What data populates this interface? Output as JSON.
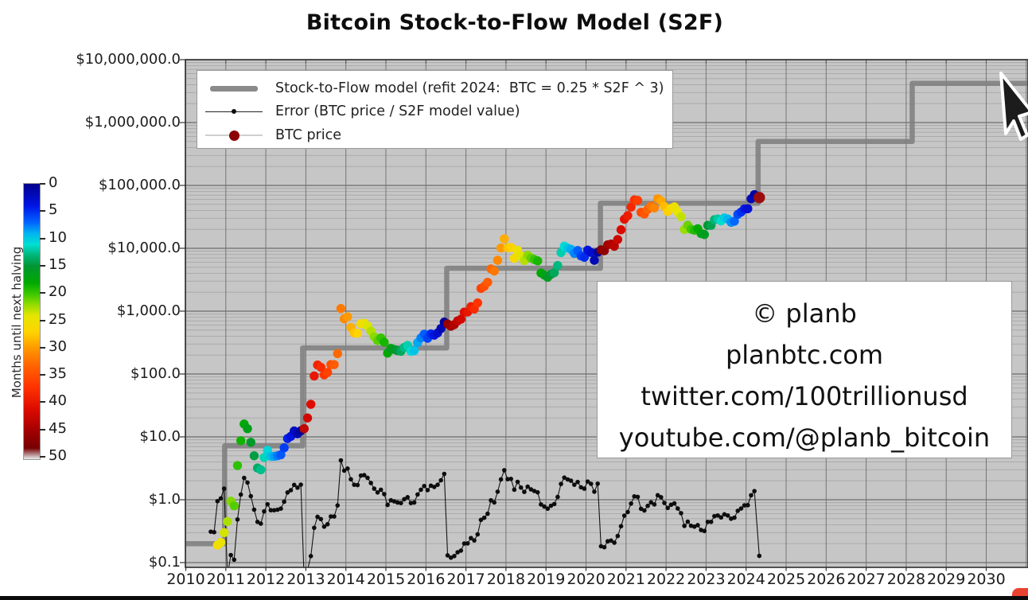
{
  "title": "Bitcoin Stock-to-Flow Model (S2F)",
  "legend": {
    "items": [
      {
        "label": "Stock-to-Flow model (refit 2024:  BTC = 0.25 * S2F ^ 3)",
        "marker": "thick-gray-line",
        "color": "#8a8a8a"
      },
      {
        "label": "Error (BTC price / S2F model value)",
        "marker": "thin-line-black-dot",
        "color": "#111111"
      },
      {
        "label": "BTC price",
        "marker": "dark-red-dot",
        "color": "#8b0000"
      }
    ]
  },
  "watermark": {
    "lines": [
      "© planb",
      "planbtc.com",
      "twitter.com/100trillionusd",
      "youtube.com/@planb_bitcoin"
    ]
  },
  "colorbar": {
    "label": "Months until next halving",
    "min": 0,
    "max": 50,
    "ticks": [
      0,
      5,
      10,
      15,
      20,
      25,
      30,
      35,
      40,
      45,
      50
    ],
    "stops": [
      [
        0,
        "#00008b"
      ],
      [
        4,
        "#0014e6"
      ],
      [
        7,
        "#0064ff"
      ],
      [
        9,
        "#00b4f0"
      ],
      [
        11,
        "#00e0d2"
      ],
      [
        13,
        "#00b478"
      ],
      [
        15,
        "#009632"
      ],
      [
        18,
        "#00aa00"
      ],
      [
        20,
        "#3cc800"
      ],
      [
        22,
        "#96dc00"
      ],
      [
        24,
        "#e6e600"
      ],
      [
        27,
        "#ffd200"
      ],
      [
        30,
        "#ff9600"
      ],
      [
        33,
        "#ff6400"
      ],
      [
        37,
        "#ff3200"
      ],
      [
        41,
        "#dc0a00"
      ],
      [
        45,
        "#a00000"
      ],
      [
        48,
        "#780000"
      ],
      [
        49.5,
        "#c8b4b4"
      ],
      [
        50,
        "#ebebeb"
      ]
    ]
  },
  "axes": {
    "y_tick_labels": [
      "$10,000,000.0",
      "$1,000,000.0",
      "$100,000.0",
      "$10,000.0",
      "$1,000.0",
      "$100.0",
      "$10.0",
      "$1.0",
      "$0.1"
    ],
    "y_tick_values": [
      10000000,
      1000000,
      100000,
      10000,
      1000,
      100,
      10,
      1,
      0.1
    ],
    "x_ticks": [
      2010,
      2011,
      2012,
      2013,
      2014,
      2015,
      2016,
      2017,
      2018,
      2019,
      2020,
      2021,
      2022,
      2023,
      2024,
      2025,
      2026,
      2027,
      2028,
      2029,
      2030
    ],
    "y_scale": "log"
  },
  "chart_data": {
    "type": "line",
    "title": "Bitcoin Stock-to-Flow Model (S2F)",
    "xlabel": "",
    "ylabel": "",
    "x_range": [
      2010,
      2031.05
    ],
    "y_range": [
      0.084,
      10000000
    ],
    "grid": true,
    "legend_position": "upper-left",
    "plot_bg": "#c6c6c6",
    "halvings": [
      2012.92,
      2016.52,
      2020.36,
      2024.3,
      2028.15
    ],
    "color_encoding": "months until next halving",
    "error_definition": "BTC price / S2F model value",
    "series": [
      {
        "name": "Stock-to-Flow model (refit 2024: BTC = 0.25 * S2F ^ 3)",
        "type": "step-line",
        "color": "#7f7f7f",
        "steps": [
          [
            2010,
            0.2
          ],
          [
            2010.97,
            7.2
          ],
          [
            2012.92,
            260
          ],
          [
            2016.52,
            4800
          ],
          [
            2020.36,
            52000
          ],
          [
            2024.3,
            500000
          ],
          [
            2028.15,
            4200000
          ]
        ],
        "x_end": 2031.1
      },
      {
        "name": "BTC price",
        "type": "scatter",
        "color_by": "months-until-next-halving",
        "last_point_color": "#9b0d0d",
        "points": [
          [
            2010.625,
            0.062
          ],
          [
            2010.708,
            0.061
          ],
          [
            2010.792,
            0.19
          ],
          [
            2010.875,
            0.21
          ],
          [
            2010.958,
            0.3
          ],
          [
            2011.042,
            0.45
          ],
          [
            2011.125,
            0.95
          ],
          [
            2011.208,
            0.8
          ],
          [
            2011.292,
            3.5
          ],
          [
            2011.375,
            8.7
          ],
          [
            2011.458,
            16
          ],
          [
            2011.542,
            13.5
          ],
          [
            2011.625,
            8.2
          ],
          [
            2011.708,
            5.0
          ],
          [
            2011.792,
            3.2
          ],
          [
            2011.875,
            3.0
          ],
          [
            2011.958,
            4.7
          ],
          [
            2012.042,
            6.1
          ],
          [
            2012.125,
            4.9
          ],
          [
            2012.208,
            4.9
          ],
          [
            2012.292,
            5.0
          ],
          [
            2012.375,
            5.2
          ],
          [
            2012.458,
            6.7
          ],
          [
            2012.542,
            9.4
          ],
          [
            2012.625,
            10.2
          ],
          [
            2012.708,
            12.4
          ],
          [
            2012.792,
            11.2
          ],
          [
            2012.875,
            12.5
          ],
          [
            2012.958,
            13.5
          ],
          [
            2013.042,
            20
          ],
          [
            2013.125,
            33
          ],
          [
            2013.208,
            93
          ],
          [
            2013.292,
            139
          ],
          [
            2013.375,
            128
          ],
          [
            2013.458,
            97
          ],
          [
            2013.542,
            106
          ],
          [
            2013.625,
            141
          ],
          [
            2013.708,
            141
          ],
          [
            2013.792,
            211
          ],
          [
            2013.875,
            1100
          ],
          [
            2013.958,
            755
          ],
          [
            2014.042,
            815
          ],
          [
            2014.125,
            550
          ],
          [
            2014.208,
            450
          ],
          [
            2014.292,
            445
          ],
          [
            2014.375,
            630
          ],
          [
            2014.458,
            640
          ],
          [
            2014.542,
            580
          ],
          [
            2014.625,
            480
          ],
          [
            2014.708,
            390
          ],
          [
            2014.792,
            340
          ],
          [
            2014.875,
            375
          ],
          [
            2014.958,
            320
          ],
          [
            2015.042,
            215
          ],
          [
            2015.125,
            255
          ],
          [
            2015.208,
            245
          ],
          [
            2015.292,
            235
          ],
          [
            2015.375,
            230
          ],
          [
            2015.458,
            265
          ],
          [
            2015.542,
            285
          ],
          [
            2015.625,
            230
          ],
          [
            2015.708,
            235
          ],
          [
            2015.792,
            315
          ],
          [
            2015.875,
            375
          ],
          [
            2015.958,
            430
          ],
          [
            2016.042,
            370
          ],
          [
            2016.125,
            435
          ],
          [
            2016.208,
            415
          ],
          [
            2016.292,
            450
          ],
          [
            2016.375,
            530
          ],
          [
            2016.458,
            670
          ],
          [
            2016.542,
            625
          ],
          [
            2016.625,
            575
          ],
          [
            2016.708,
            610
          ],
          [
            2016.792,
            700
          ],
          [
            2016.875,
            745
          ],
          [
            2016.958,
            965
          ],
          [
            2017.042,
            970
          ],
          [
            2017.125,
            1180
          ],
          [
            2017.208,
            1080
          ],
          [
            2017.292,
            1350
          ],
          [
            2017.375,
            2300
          ],
          [
            2017.458,
            2480
          ],
          [
            2017.542,
            2875
          ],
          [
            2017.625,
            4700
          ],
          [
            2017.708,
            4340
          ],
          [
            2017.792,
            6450
          ],
          [
            2017.875,
            10100
          ],
          [
            2017.958,
            14150
          ],
          [
            2018.042,
            10200
          ],
          [
            2018.125,
            10300
          ],
          [
            2018.208,
            6930
          ],
          [
            2018.292,
            9240
          ],
          [
            2018.375,
            7500
          ],
          [
            2018.458,
            6400
          ],
          [
            2018.542,
            7750
          ],
          [
            2018.625,
            7015
          ],
          [
            2018.708,
            6600
          ],
          [
            2018.792,
            6300
          ],
          [
            2018.875,
            4040
          ],
          [
            2018.958,
            3740
          ],
          [
            2019.042,
            3460
          ],
          [
            2019.125,
            3855
          ],
          [
            2019.208,
            4105
          ],
          [
            2019.292,
            5320
          ],
          [
            2019.375,
            8560
          ],
          [
            2019.458,
            10800
          ],
          [
            2019.542,
            10090
          ],
          [
            2019.625,
            9630
          ],
          [
            2019.708,
            8310
          ],
          [
            2019.792,
            9200
          ],
          [
            2019.875,
            7570
          ],
          [
            2019.958,
            7200
          ],
          [
            2020.042,
            9350
          ],
          [
            2020.125,
            8600
          ],
          [
            2020.208,
            6440
          ],
          [
            2020.292,
            8650
          ],
          [
            2020.375,
            9450
          ],
          [
            2020.458,
            9140
          ],
          [
            2020.542,
            11350
          ],
          [
            2020.625,
            11650
          ],
          [
            2020.708,
            10780
          ],
          [
            2020.792,
            13800
          ],
          [
            2020.875,
            19700
          ],
          [
            2020.958,
            29000
          ],
          [
            2021.042,
            33100
          ],
          [
            2021.125,
            45200
          ],
          [
            2021.208,
            58800
          ],
          [
            2021.292,
            57750
          ],
          [
            2021.375,
            37300
          ],
          [
            2021.458,
            35040
          ],
          [
            2021.542,
            41550
          ],
          [
            2021.625,
            47150
          ],
          [
            2021.708,
            43800
          ],
          [
            2021.792,
            61300
          ],
          [
            2021.875,
            57000
          ],
          [
            2021.958,
            46200
          ],
          [
            2022.042,
            38480
          ],
          [
            2022.125,
            43200
          ],
          [
            2022.208,
            45540
          ],
          [
            2022.292,
            37650
          ],
          [
            2022.375,
            31800
          ],
          [
            2022.458,
            19925
          ],
          [
            2022.542,
            23300
          ],
          [
            2022.625,
            20050
          ],
          [
            2022.708,
            19430
          ],
          [
            2022.792,
            20490
          ],
          [
            2022.875,
            17165
          ],
          [
            2022.958,
            16540
          ],
          [
            2023.042,
            23130
          ],
          [
            2023.125,
            23140
          ],
          [
            2023.208,
            28475
          ],
          [
            2023.292,
            29250
          ],
          [
            2023.375,
            27220
          ],
          [
            2023.458,
            30480
          ],
          [
            2023.542,
            29230
          ],
          [
            2023.625,
            25940
          ],
          [
            2023.708,
            26965
          ],
          [
            2023.792,
            34660
          ],
          [
            2023.875,
            37715
          ],
          [
            2023.958,
            42265
          ],
          [
            2024.042,
            42580
          ],
          [
            2024.125,
            61200
          ],
          [
            2024.208,
            71330
          ],
          [
            2024.33,
            64000
          ]
        ]
      },
      {
        "name": "Error (BTC price / S2F model value)",
        "type": "line-scatter",
        "color": "#111111",
        "derived_from": "BTC price divided by model step value at same date"
      }
    ]
  },
  "cursor": {
    "type": "arrow-pointer"
  },
  "corner_badge": {
    "color": "#ea4231"
  }
}
